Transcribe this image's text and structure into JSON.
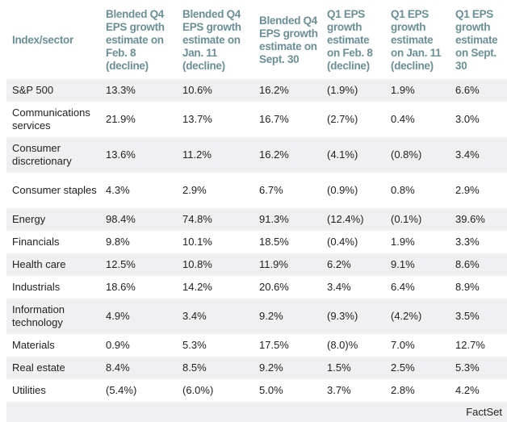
{
  "header": [
    "Index/sector",
    "Blended Q4 EPS growth estimate on Feb. 8 (decline)",
    "Blended Q4 EPS growth estimate on Jan. 11 (decline)",
    "Blended Q4 EPS growth estimate on Sept. 30",
    "Q1 EPS growth estimate on Feb. 8 (decline)",
    "Q1 EPS growth estimate on Jan. 11 (decline)",
    "Q1 EPS growth estimate on Sept. 30"
  ],
  "rows": [
    [
      "S&P 500",
      "13.3%",
      "10.6%",
      "16.2%",
      "(1.9%)",
      "1.9%",
      "6.6%"
    ],
    [
      "Communications services",
      "21.9%",
      "13.7%",
      "16.7%",
      "(2.7%)",
      "0.4%",
      "3.0%"
    ],
    [
      "Consumer discretionary",
      "13.6%",
      "11.2%",
      "16.2%",
      "(4.1%)",
      "(0.8%)",
      "3.4%"
    ],
    [
      "Consumer staples",
      "4.3%",
      "2.9%",
      "6.7%",
      "(0.9%)",
      "0.8%",
      "2.9%"
    ],
    [
      "Energy",
      "98.4%",
      "74.8%",
      "91.3%",
      "(12.4%)",
      "(0.1%)",
      "39.6%"
    ],
    [
      "Financials",
      "9.8%",
      "10.1%",
      "18.5%",
      "(0.4%)",
      "1.9%",
      "3.3%"
    ],
    [
      "Health care",
      "12.5%",
      "10.8%",
      "11.9%",
      "6.2%",
      "9.1%",
      "8.6%"
    ],
    [
      "Industrials",
      "18.6%",
      "14.2%",
      "20.6%",
      "3.4%",
      "6.4%",
      "8.9%"
    ],
    [
      "Information technology",
      "4.9%",
      "3.4%",
      "9.2%",
      "(9.3%)",
      "(4.2%)",
      "3.5%"
    ],
    [
      "Materials",
      "0.9%",
      "5.3%",
      "17.5%",
      "(8.0)%",
      "7.0%",
      "12.7%"
    ],
    [
      "Real estate",
      "8.4%",
      "8.5%",
      "9.2%",
      "1.5%",
      "2.5%",
      "5.3%"
    ],
    [
      "Utilities",
      "(5.4%)",
      "(6.0%)",
      "5.0%",
      "3.7%",
      "2.8%",
      "4.2%"
    ]
  ],
  "source": "FactSet"
}
